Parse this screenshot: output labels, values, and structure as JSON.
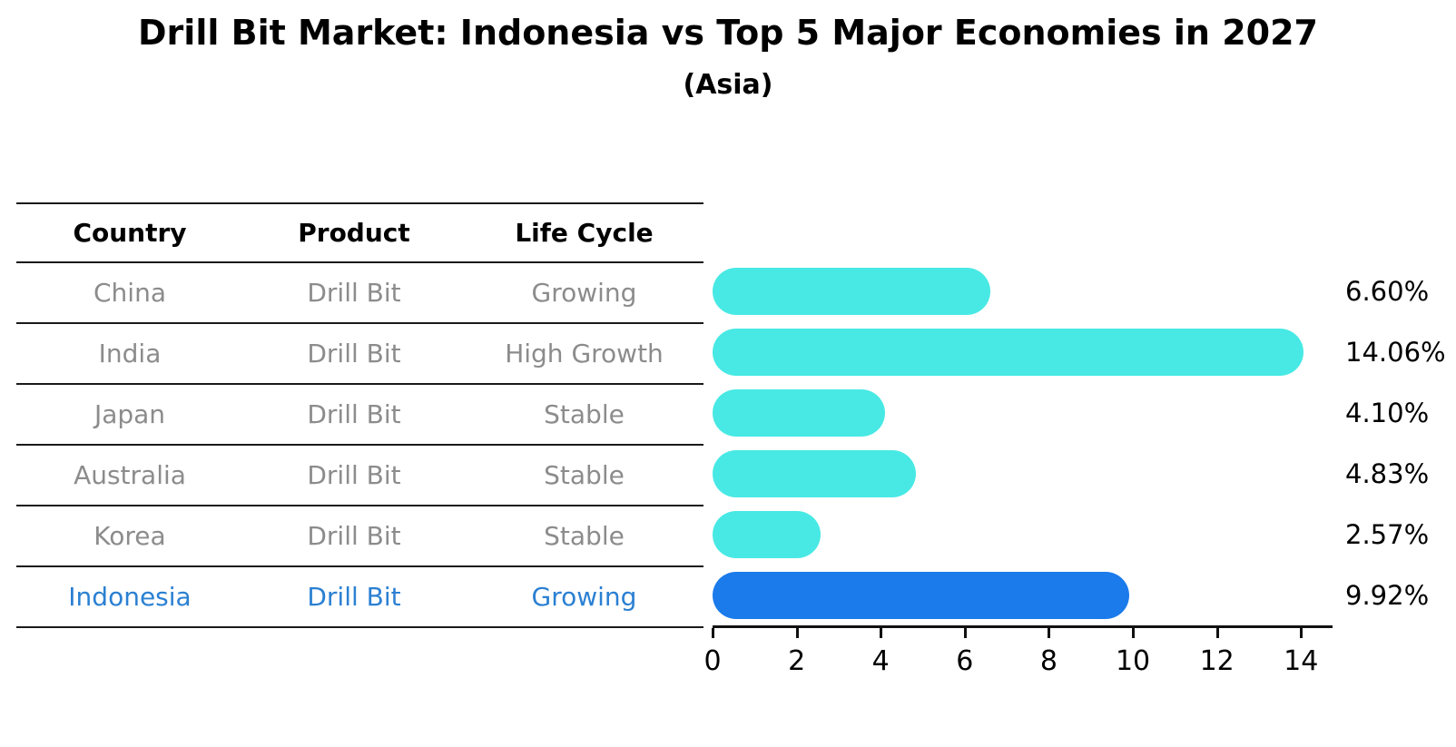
{
  "title": "Drill Bit Market: Indonesia vs Top 5 Major Economies in 2027",
  "subtitle": "(Asia)",
  "table": {
    "headers": [
      "Country",
      "Product",
      "Life Cycle"
    ],
    "rows": [
      {
        "country": "China",
        "product": "Drill Bit",
        "life_cycle": "Growing"
      },
      {
        "country": "India",
        "product": "Drill Bit",
        "life_cycle": "High Growth"
      },
      {
        "country": "Japan",
        "product": "Drill Bit",
        "life_cycle": "Stable"
      },
      {
        "country": "Australia",
        "product": "Drill Bit",
        "life_cycle": "Stable"
      },
      {
        "country": "Korea",
        "product": "Drill Bit",
        "life_cycle": "Stable"
      },
      {
        "country": "Indonesia",
        "product": "Drill Bit",
        "life_cycle": "Growing"
      }
    ]
  },
  "chart_data": {
    "type": "bar",
    "orientation": "horizontal",
    "title": "Drill Bit Market: Indonesia vs Top 5 Major Economies in 2027",
    "subtitle": "(Asia)",
    "categories": [
      "China",
      "India",
      "Japan",
      "Australia",
      "Korea",
      "Indonesia"
    ],
    "values": [
      6.6,
      14.06,
      4.1,
      4.83,
      2.57,
      9.92
    ],
    "value_labels": [
      "6.60%",
      "14.06%",
      "4.10%",
      "4.83%",
      "2.57%",
      "9.92%"
    ],
    "highlight_index": 5,
    "xlim": [
      0,
      14.75
    ],
    "x_ticks": [
      0,
      2,
      4,
      6,
      8,
      10,
      12,
      14
    ],
    "grid": false,
    "legend": "none",
    "colors": {
      "bar_default": "#48E9E4",
      "bar_highlight": "#1B7BEB",
      "highlight_text": "#2B80D2",
      "row_text": "#8C8C8C",
      "axis_text": "#000000"
    }
  }
}
